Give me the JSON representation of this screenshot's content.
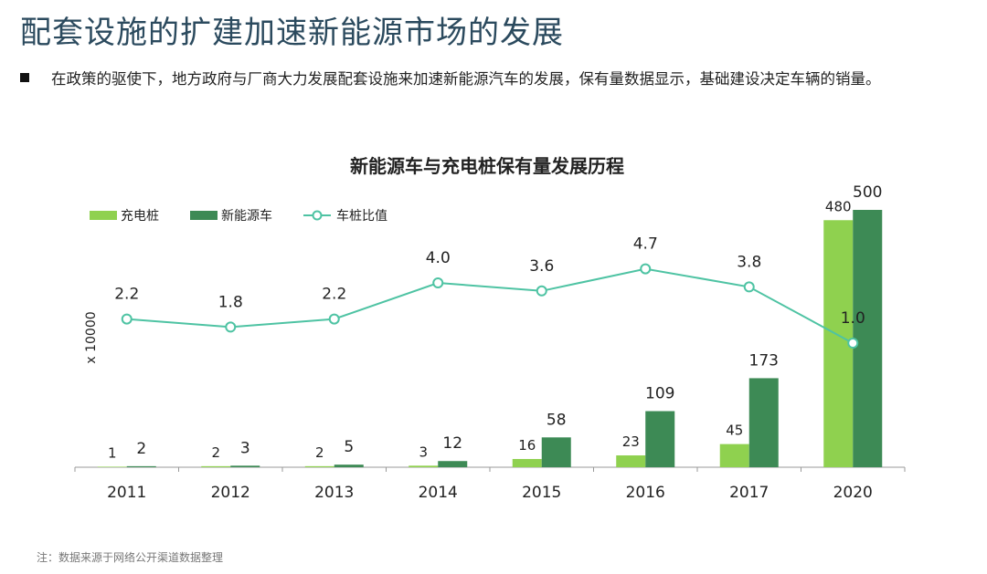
{
  "page": {
    "title": "配套设施的扩建加速新能源市场的发展",
    "bullet_text": "在政策的驱使下，地方政府与厂商大力发展配套设施来加速新能源汽车的发展，保有量数据显示，基础建设决定车辆的销量。",
    "note": "注：数据来源于网络公开渠道数据整理"
  },
  "chart_data": {
    "type": "bar+line",
    "title": "新能源车与充电桩保有量发展历程",
    "ylabel": "x 10000",
    "categories": [
      "2011",
      "2012",
      "2013",
      "2014",
      "2015",
      "2016",
      "2017",
      "2020"
    ],
    "series": [
      {
        "name": "充电桩",
        "type": "bar",
        "color": "#8fd14f",
        "values": [
          1,
          2,
          2,
          3,
          16,
          23,
          45,
          480
        ]
      },
      {
        "name": "新能源车",
        "type": "bar",
        "color": "#3d8a55",
        "values": [
          2,
          3,
          5,
          12,
          58,
          109,
          173,
          500
        ]
      },
      {
        "name": "车桩比值",
        "type": "line",
        "color": "#4ec3a3",
        "values": [
          2.2,
          1.8,
          2.2,
          4.0,
          3.6,
          4.7,
          3.8,
          1.0
        ]
      }
    ],
    "ylim_bars": [
      0,
      500
    ],
    "ylim_ratio": [
      0,
      10
    ],
    "ratio_labels": [
      "2.2",
      "1.8",
      "2.2",
      "4.0",
      "3.6",
      "4.7",
      "3.8",
      "1.0"
    ],
    "legend_position": "top-left"
  }
}
